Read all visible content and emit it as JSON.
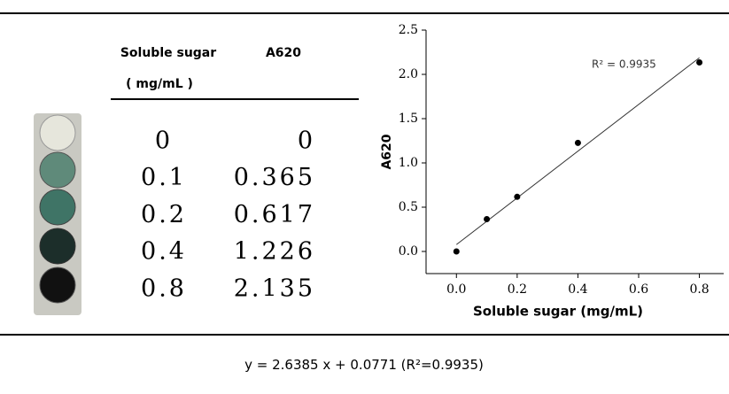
{
  "table": {
    "header": [
      "Soluble sugar",
      "A620"
    ],
    "unit": "( mg/mL )",
    "rows": [
      [
        "0",
        "0"
      ],
      [
        "0.1",
        "0.365"
      ],
      [
        "0.2",
        "0.617"
      ],
      [
        "0.4",
        "1.226"
      ],
      [
        "0.8",
        "2.135"
      ]
    ]
  },
  "chart_data": {
    "type": "scatter",
    "x_label": "Soluble sugar (mg/mL)",
    "y_label": "A620",
    "annotation": "R² = 0.9935",
    "x": [
      0,
      0.1,
      0.2,
      0.4,
      0.8
    ],
    "values": [
      0,
      0.365,
      0.617,
      1.226,
      2.135
    ],
    "color": "#000000",
    "xlim": [
      -0.1,
      0.88
    ],
    "ylim": [
      -0.25,
      2.5
    ],
    "xticks": [
      {
        "value": 0,
        "label": "0.0"
      },
      0.2,
      0.4,
      0.6,
      0.8
    ],
    "yticks": [
      {
        "value": 0,
        "label": "0.0"
      },
      0.5,
      {
        "value": 1,
        "label": "1.0"
      },
      1.5,
      {
        "value": 2,
        "label": "2.0"
      },
      2.5
    ]
  },
  "equation": {
    "lhs": "y =",
    "slope": 2.6385,
    "x": "x +",
    "intercept": 0.0771,
    "r2": "(R²=0.9935)"
  }
}
